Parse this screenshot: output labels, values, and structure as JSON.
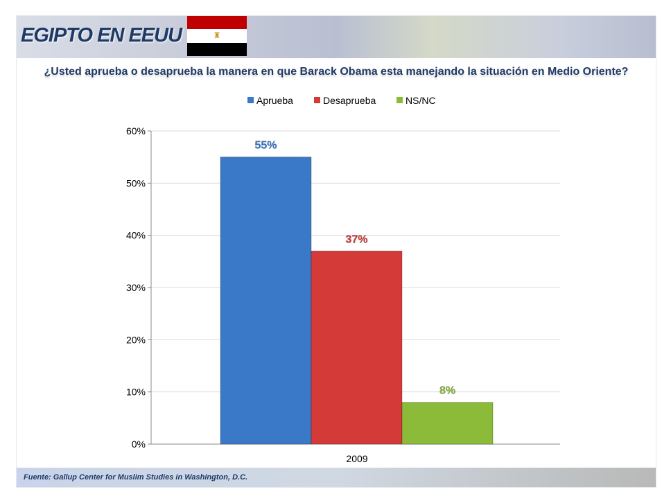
{
  "header": {
    "brand": "EGIPTO EN EEUU",
    "flag": "egypt-flag"
  },
  "footer": {
    "source": "Fuente: Gallup Center for Muslim Studies in Washington, D.C."
  },
  "chart_data": {
    "type": "bar",
    "title": "¿Usted aprueba o desaprueba la manera en que Barack Obama esta manejando la situación en Medio Oriente?",
    "categories": [
      "2009"
    ],
    "series": [
      {
        "name": "Aprueba",
        "values": [
          55
        ],
        "label": "55%",
        "color": "#3a78c8"
      },
      {
        "name": "Desaprueba",
        "values": [
          37
        ],
        "label": "37%",
        "color": "#d43a38"
      },
      {
        "name": "NS/NC",
        "values": [
          8
        ],
        "label": "8%",
        "color": "#8cbb3a"
      }
    ],
    "ylim": [
      0,
      60
    ],
    "yticks": [
      "0%",
      "10%",
      "20%",
      "30%",
      "40%",
      "50%",
      "60%"
    ],
    "grid": true,
    "legend": "top"
  }
}
